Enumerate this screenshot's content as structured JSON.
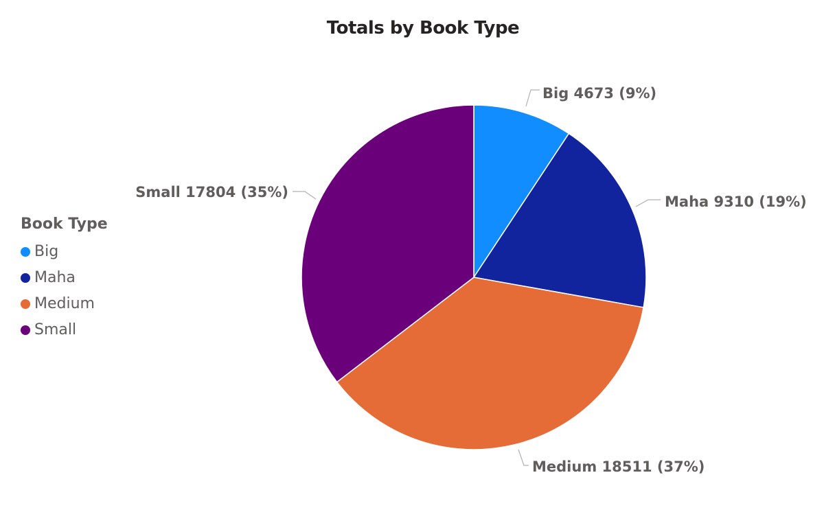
{
  "chart_data": {
    "type": "pie",
    "title": "Totals by Book Type",
    "legend_title": "Book Type",
    "legend_position": "left",
    "categories": [
      "Big",
      "Maha",
      "Medium",
      "Small"
    ],
    "values": [
      4673,
      9310,
      18511,
      17804
    ],
    "percent_labels": [
      "9%",
      "19%",
      "37%",
      "35%"
    ],
    "colors": [
      "#118dff",
      "#12239e",
      "#e66c37",
      "#6b007b"
    ],
    "data_labels": [
      "Big 4673 (9%)",
      "Maha 9310 (19%)",
      "Medium 18511 (37%)",
      "Small 17804 (35%)"
    ]
  }
}
